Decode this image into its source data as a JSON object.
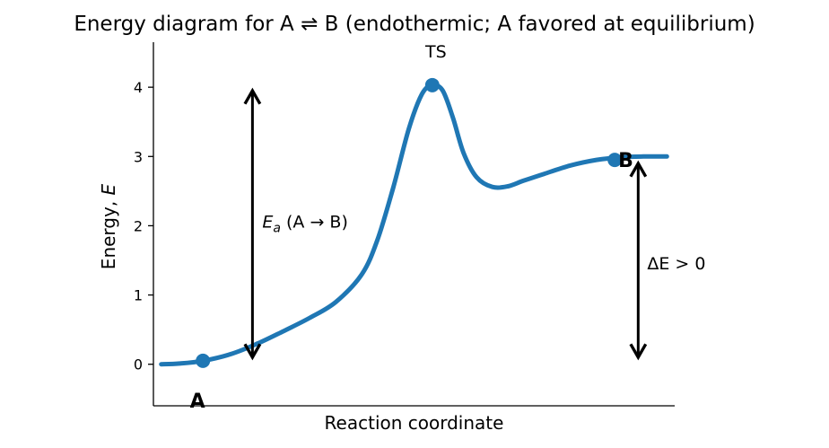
{
  "chart_data": {
    "type": "line",
    "title": "Energy diagram for A ⇌ B (endothermic; A favored at equilibrium)",
    "xlabel": "Reaction coordinate",
    "ylabel_prefix": "Energy, ",
    "ylabel_symbol": "E",
    "xlim": [
      0,
      10
    ],
    "ylim": [
      -0.6,
      4.65
    ],
    "yticks": [
      0,
      1,
      2,
      3,
      4
    ],
    "grid": false,
    "line_color": "#1f77b4",
    "marker_color": "#1f77b4",
    "curve": {
      "x": [
        0.15,
        0.5,
        0.95,
        1.5,
        2.0,
        2.5,
        3.0,
        3.5,
        4.0,
        4.3,
        4.6,
        4.9,
        5.15,
        5.35,
        5.55,
        5.75,
        5.95,
        6.2,
        6.5,
        6.8,
        7.1,
        7.5,
        8.0,
        8.5,
        9.0,
        9.4,
        9.85
      ],
      "y": [
        0.0,
        0.01,
        0.05,
        0.15,
        0.3,
        0.48,
        0.67,
        0.9,
        1.3,
        1.8,
        2.55,
        3.4,
        3.9,
        4.03,
        3.95,
        3.55,
        3.05,
        2.7,
        2.56,
        2.57,
        2.65,
        2.75,
        2.87,
        2.95,
        2.99,
        3.0,
        3.0
      ]
    },
    "points": [
      {
        "label": "A",
        "x": 0.95,
        "y": 0.05
      },
      {
        "label": "TS",
        "x": 5.35,
        "y": 4.03
      },
      {
        "label": "B",
        "x": 8.85,
        "y": 2.95
      }
    ],
    "annotations": {
      "ea": {
        "symbol": "E",
        "subscript": "a",
        "text": " (A → B)",
        "x": 1.9,
        "y_from": 0.1,
        "y_to": 3.95
      },
      "delta": {
        "text": "ΔE > 0",
        "x": 9.3,
        "y_from": 0.1,
        "y_to": 2.9
      }
    }
  }
}
